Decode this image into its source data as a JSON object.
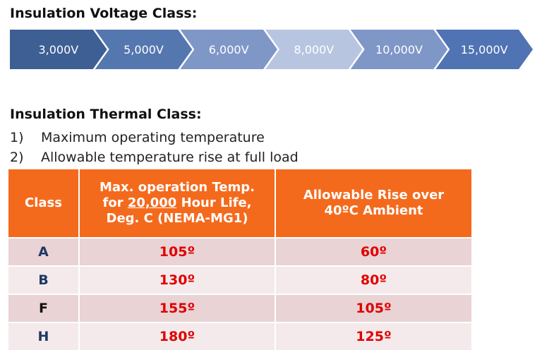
{
  "voltage": {
    "title": "Insulation Voltage Class:",
    "steps": [
      {
        "label": "3,000V",
        "color": "#3e5f93"
      },
      {
        "label": "5,000V",
        "color": "#5577b0"
      },
      {
        "label": "6,000V",
        "color": "#7f97c7"
      },
      {
        "label": "8,000V",
        "color": "#b8c5e1"
      },
      {
        "label": "10,000V",
        "color": "#7e97c6"
      },
      {
        "label": "15,000V",
        "color": "#4f73b3"
      }
    ]
  },
  "thermal": {
    "title": "Insulation Thermal Class:",
    "items": [
      {
        "num": "1)",
        "text": "Maximum operating temperature"
      },
      {
        "num": "2)",
        "text": "Allowable temperature rise at full load"
      }
    ],
    "table": {
      "headers": {
        "class": "Class",
        "max_line1": "Max. operation Temp.",
        "max_line2_pre": "for ",
        "max_line2_underlined": "20,000",
        "max_line2_post": " Hour Life,",
        "max_line3": "Deg. C (NEMA-MG1)",
        "rise_line1": "Allowable Rise over",
        "rise_line2": "40ºC Ambient"
      },
      "rows": [
        {
          "class": "A",
          "max_temp": "105º",
          "rise": "60º"
        },
        {
          "class": "B",
          "max_temp": "130º",
          "rise": "80º"
        },
        {
          "class": "F",
          "max_temp": "155º",
          "rise": "105º"
        },
        {
          "class": "H",
          "max_temp": "180º",
          "rise": "125º"
        }
      ]
    }
  },
  "colors": {
    "header_orange": "#f46a1d",
    "row_odd": "#e9d3d5",
    "row_even": "#f4eaeb",
    "value_red": "#e00000",
    "class_blue": "#1f3864"
  }
}
